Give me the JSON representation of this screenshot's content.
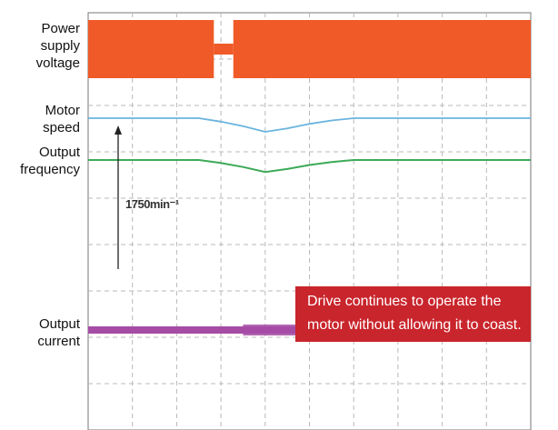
{
  "labels": {
    "power_supply_voltage": "Power\nsupply\nvoltage",
    "motor_speed": "Motor\nspeed",
    "output_frequency": "Output\nfrequency",
    "output_current": "Output\ncurrent"
  },
  "scale_annotation": "1750min⁻¹",
  "callout": {
    "line1": "Drive continues to operate the",
    "line2": "motor without allowing it to coast."
  },
  "colors": {
    "voltage": "#F05A28",
    "motor_speed": "#6AB4DE",
    "output_frequency": "#3DAA57",
    "output_current": "#A64CA6",
    "callout_bg": "#C9252C",
    "grid": "#B8B8B8"
  },
  "chart_data": {
    "type": "line",
    "title": "",
    "xlabel": "",
    "ylabel": "",
    "grid": true,
    "x_divisions": 10,
    "x": [
      0,
      0.5,
      1,
      1.5,
      2,
      2.5,
      3,
      3.5,
      4,
      4.5,
      5,
      5.5,
      6,
      6.5,
      7,
      7.5,
      8,
      8.5,
      9,
      9.5,
      10
    ],
    "series": [
      {
        "name": "Power supply voltage",
        "values": [
          1,
          1,
          1,
          1,
          1,
          1,
          0,
          1,
          1,
          1,
          1,
          1,
          1,
          1,
          1,
          1,
          1,
          1,
          1,
          1,
          1
        ]
      },
      {
        "name": "Motor speed",
        "values": [
          1,
          1,
          1,
          1,
          1,
          1,
          0.985,
          0.965,
          0.94,
          0.955,
          0.975,
          0.99,
          1,
          1,
          1,
          1,
          1,
          1,
          1,
          1,
          1
        ]
      },
      {
        "name": "Output frequency",
        "values": [
          1,
          1,
          1,
          1,
          1,
          1,
          0.985,
          0.965,
          0.94,
          0.955,
          0.975,
          0.99,
          1,
          1,
          1,
          1,
          1,
          1,
          1,
          1,
          1
        ]
      },
      {
        "name": "Output current",
        "values": [
          1,
          1,
          1,
          1,
          1,
          1,
          1,
          1,
          1,
          1,
          1,
          1,
          1,
          1,
          1,
          1,
          1,
          1,
          1,
          1,
          1
        ]
      }
    ]
  }
}
